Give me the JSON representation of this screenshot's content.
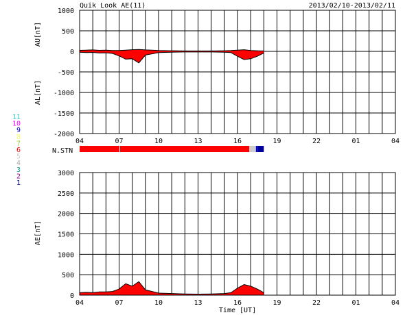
{
  "title": "Quik Look AE(11)",
  "date_range": "2013/02/10-2013/02/11",
  "x_ticks": [
    "04",
    "07",
    "10",
    "13",
    "16",
    "19",
    "22",
    "01",
    "04"
  ],
  "xlabel": "Time [UT]",
  "station_bar_label": "N.STN",
  "station_legend": [
    {
      "label": "11",
      "color": "#33cccc"
    },
    {
      "label": "10",
      "color": "#ff00ff"
    },
    {
      "label": "9",
      "color": "#0000cc"
    },
    {
      "label": "8",
      "color": "#ffff66"
    },
    {
      "label": "7",
      "color": "#99cc33"
    },
    {
      "label": "6",
      "color": "#ff0000"
    },
    {
      "label": "5",
      "color": "#cccccc"
    },
    {
      "label": "4",
      "color": "#aaaaaa"
    },
    {
      "label": "3",
      "color": "#009999"
    },
    {
      "label": "2",
      "color": "#990099"
    },
    {
      "label": "1",
      "color": "#000099"
    }
  ],
  "station_bar": [
    {
      "from_hour": 4.0,
      "to_hour": 16.9,
      "stations": 6
    },
    {
      "from_hour": 16.9,
      "to_hour": 17.4,
      "stations": 5
    },
    {
      "from_hour": 17.4,
      "to_hour": 17.55,
      "stations": 9
    },
    {
      "from_hour": 17.55,
      "to_hour": 18.0,
      "stations": 1
    }
  ],
  "chart_data": [
    {
      "type": "area",
      "panel": "AU/AL",
      "ylabel_upper": "AU[nT]",
      "ylabel_lower": "AL[nT]",
      "ylim": [
        -2000,
        1000
      ],
      "yticks": [
        1000,
        500,
        0,
        -500,
        -1000,
        -1500,
        -2000
      ],
      "xlim_hours": [
        4,
        28
      ],
      "grid": true,
      "series": [
        {
          "name": "AU",
          "x_hours": [
            4.0,
            4.5,
            5.0,
            5.5,
            6.0,
            6.5,
            7.0,
            7.5,
            8.0,
            8.5,
            9.0,
            9.5,
            10.0,
            11.0,
            12.0,
            13.0,
            14.0,
            15.0,
            15.5,
            16.0,
            16.5,
            17.0,
            17.5,
            18.0
          ],
          "values": [
            25,
            30,
            35,
            25,
            30,
            20,
            20,
            30,
            40,
            45,
            35,
            30,
            20,
            15,
            10,
            10,
            10,
            15,
            20,
            30,
            40,
            20,
            15,
            10
          ]
        },
        {
          "name": "AL",
          "x_hours": [
            4.0,
            4.5,
            5.0,
            5.5,
            6.0,
            6.5,
            7.0,
            7.5,
            8.0,
            8.5,
            9.0,
            9.5,
            10.0,
            11.0,
            12.0,
            13.0,
            14.0,
            15.0,
            15.5,
            16.0,
            16.5,
            17.0,
            17.5,
            18.0
          ],
          "values": [
            -20,
            -30,
            -25,
            -40,
            -35,
            -50,
            -110,
            -190,
            -180,
            -280,
            -90,
            -60,
            -30,
            -20,
            -15,
            -15,
            -15,
            -20,
            -30,
            -120,
            -200,
            -180,
            -120,
            -40
          ]
        }
      ]
    },
    {
      "type": "area",
      "panel": "AE",
      "ylabel": "AE[nT]",
      "ylim": [
        0,
        3000
      ],
      "yticks": [
        3000,
        2500,
        2000,
        1500,
        1000,
        500,
        0
      ],
      "xlim_hours": [
        4,
        28
      ],
      "grid": true,
      "series": [
        {
          "name": "AE",
          "x_hours": [
            4.0,
            4.5,
            5.0,
            5.5,
            6.0,
            6.5,
            7.0,
            7.5,
            8.0,
            8.5,
            9.0,
            9.5,
            10.0,
            11.0,
            12.0,
            13.0,
            14.0,
            15.0,
            15.5,
            16.0,
            16.5,
            17.0,
            17.5,
            18.0
          ],
          "values": [
            60,
            70,
            60,
            80,
            80,
            90,
            150,
            280,
            220,
            330,
            130,
            90,
            50,
            40,
            30,
            25,
            30,
            40,
            60,
            170,
            260,
            220,
            150,
            60
          ]
        }
      ]
    }
  ]
}
